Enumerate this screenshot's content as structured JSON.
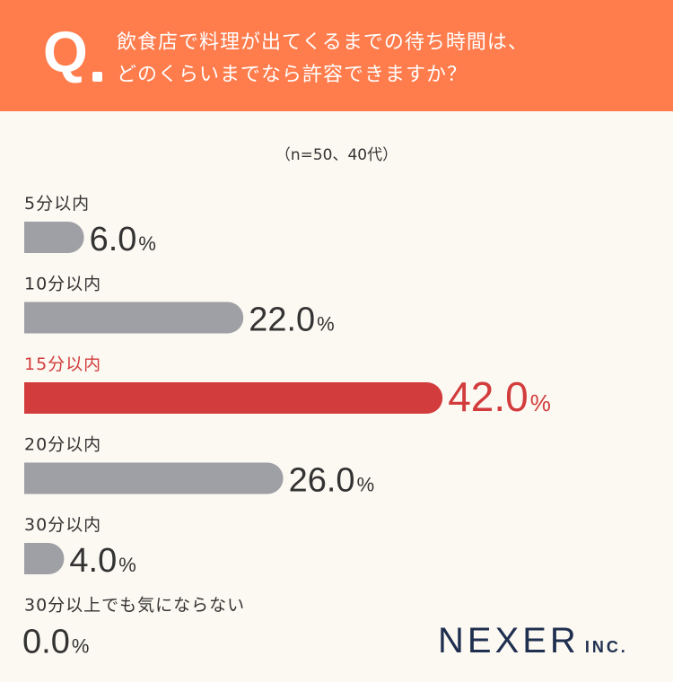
{
  "header": {
    "q_mark": "Q",
    "question_lines": [
      "飲食店で料理が出てくるまでの待ち時間は、",
      "どのくらいまでなら許容できますか？"
    ]
  },
  "sample_note": "（n=50、40代）",
  "colors": {
    "header_bg": "#ff7c4c",
    "bar_default": "#9fa0a6",
    "bar_highlight": "#d23c3c",
    "text_default": "#333333",
    "background": "#fcf9f2",
    "logo": "#1f2f4f"
  },
  "chart_data": {
    "type": "bar",
    "orientation": "horizontal",
    "categories": [
      "5分以内",
      "10分以内",
      "15分以内",
      "20分以内",
      "30分以内",
      "30分以上でも気にならない"
    ],
    "values": [
      6.0,
      22.0,
      42.0,
      26.0,
      4.0,
      0.0
    ],
    "value_labels": [
      "6.0",
      "22.0",
      "42.0",
      "26.0",
      "4.0",
      "0.0"
    ],
    "unit": "%",
    "highlight_index": 2
  },
  "logo": {
    "main": "NEXER",
    "sub": "INC."
  }
}
